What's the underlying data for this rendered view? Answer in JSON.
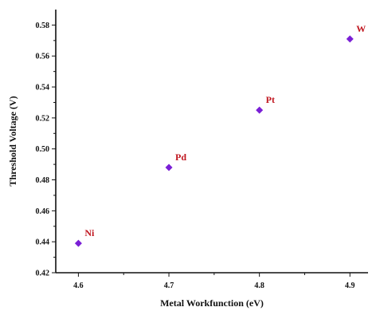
{
  "chart_data": {
    "type": "scatter",
    "title": "",
    "xlabel": "Metal Workfunction (eV)",
    "ylabel": "Threshold Voltage (V)",
    "xlim": [
      4.575,
      4.92
    ],
    "ylim": [
      0.42,
      0.59
    ],
    "x_ticks": [
      4.6,
      4.7,
      4.8,
      4.9
    ],
    "x_tick_labels": [
      "4.6",
      "4.7",
      "4.8",
      "4.9"
    ],
    "y_ticks": [
      0.42,
      0.44,
      0.46,
      0.48,
      0.5,
      0.52,
      0.54,
      0.56,
      0.58
    ],
    "y_tick_labels": [
      "0.42",
      "0.44",
      "0.46",
      "0.48",
      "0.50",
      "0.52",
      "0.54",
      "0.56",
      "0.58"
    ],
    "grid": false,
    "marker": "diamond",
    "marker_color": "#7a1fd6",
    "label_color": "#c0161f",
    "points": [
      {
        "label": "Ni",
        "x": 4.6,
        "y": 0.439
      },
      {
        "label": "Pd",
        "x": 4.7,
        "y": 0.488
      },
      {
        "label": "Pt",
        "x": 4.8,
        "y": 0.525
      },
      {
        "label": "W",
        "x": 4.9,
        "y": 0.571
      }
    ]
  }
}
